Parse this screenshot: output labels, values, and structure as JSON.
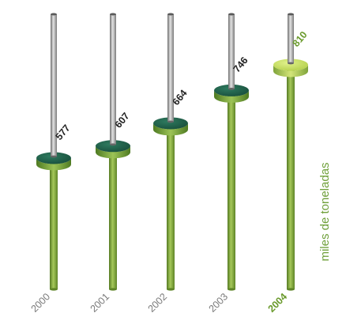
{
  "chart_data": {
    "type": "bar",
    "categories": [
      "2000",
      "2001",
      "2002",
      "2003",
      "2004"
    ],
    "values": [
      577,
      607,
      664,
      746,
      810
    ],
    "ylabel": "miles de toneladas",
    "highlight_category": "2004",
    "colors": {
      "green": "#7ea63a",
      "green_dark": "#557a23",
      "green_light": "#a6c95a",
      "disc_dark": "#1e5a45",
      "disc_highlight": "#c6dc5c",
      "rod": "#a9a9a9",
      "value_text": "#222222",
      "year_text": "#7a7a7a",
      "highlight_text": "#6a9a2c",
      "axis_text": "#6fa03a"
    }
  }
}
